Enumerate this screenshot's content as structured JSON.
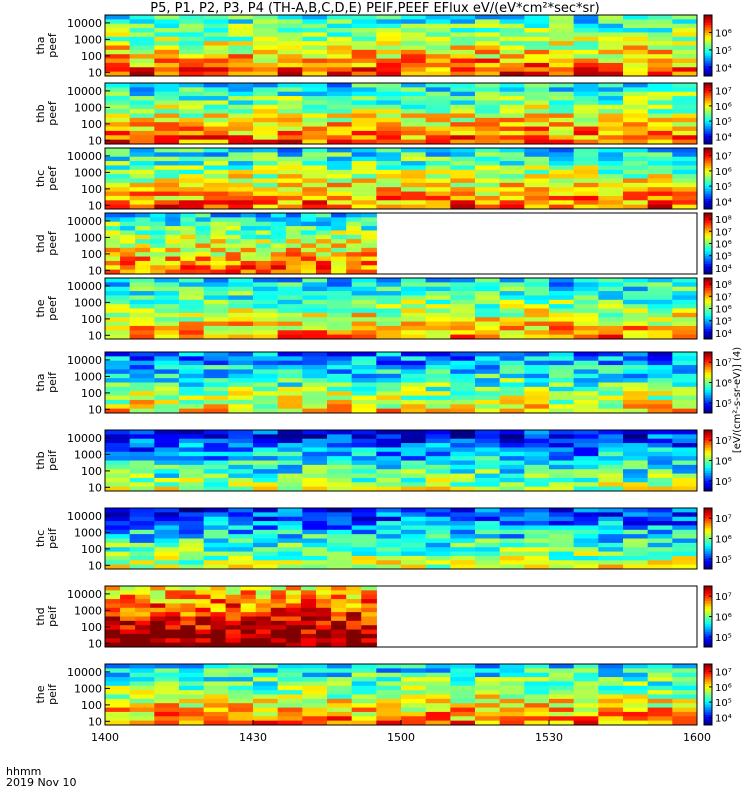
{
  "title": "P5, P1, P2, P3, P4 (TH-A,B,C,D,E) PEIF,PEEF EFlux eV/(eV*cm²*sec*sr)",
  "time_axis": {
    "label_line1": "hhmm",
    "label_line2": "2019 Nov 10",
    "ticks": [
      "1400",
      "1430",
      "1500",
      "1530",
      "1600"
    ]
  },
  "colorbar_unit": "[eV/(cm²-s-sr-eV)] (4)",
  "chart_data": {
    "type": "heatmap",
    "time_range": [
      1400,
      1600
    ],
    "energy_range_eV": [
      6,
      30000
    ],
    "yscale": "log",
    "y_ticks": [
      "10",
      "100",
      "1000",
      "10000"
    ],
    "panels": [
      {
        "label": "tha\npeef",
        "cbar_ticks": [
          "10⁴",
          "10⁵",
          "10⁶"
        ],
        "cbar_range": [
          3.5,
          7.0
        ],
        "data_end": 1600,
        "mean": 5.3
      },
      {
        "label": "thb\npeef",
        "cbar_ticks": [
          "10⁴",
          "10⁵",
          "10⁶",
          "10⁷"
        ],
        "cbar_range": [
          3.5,
          7.5
        ],
        "data_end": 1600,
        "mean": 5.5
      },
      {
        "label": "thc\npeef",
        "cbar_ticks": [
          "10⁴",
          "10⁵",
          "10⁶",
          "10⁷"
        ],
        "cbar_range": [
          3.5,
          7.5
        ],
        "data_end": 1600,
        "mean": 5.5
      },
      {
        "label": "thd\npeef",
        "cbar_ticks": [
          "10⁴",
          "10⁵",
          "10⁶",
          "10⁷",
          "10⁸"
        ],
        "cbar_range": [
          3.5,
          8.5
        ],
        "data_end": 1455,
        "mean": 6.0
      },
      {
        "label": "the\npeef",
        "cbar_ticks": [
          "10⁴",
          "10⁵",
          "10⁶",
          "10⁷",
          "10⁸"
        ],
        "cbar_range": [
          3.5,
          8.5
        ],
        "data_end": 1600,
        "mean": 5.8
      },
      {
        "label": "tha\npeif",
        "cbar_ticks": [
          "10⁵",
          "10⁶",
          "10⁷"
        ],
        "cbar_range": [
          4.5,
          7.5
        ],
        "data_end": 1600,
        "mean": 5.6
      },
      {
        "label": "thb\npeif",
        "cbar_ticks": [
          "10⁵",
          "10⁶",
          "10⁷"
        ],
        "cbar_range": [
          4.5,
          7.5
        ],
        "data_end": 1600,
        "mean": 5.3
      },
      {
        "label": "thc\npeif",
        "cbar_ticks": [
          "10⁵",
          "10⁶",
          "10⁷"
        ],
        "cbar_range": [
          4.5,
          7.5
        ],
        "data_end": 1600,
        "mean": 5.4
      },
      {
        "label": "thd\npeif",
        "cbar_ticks": [
          "10⁵",
          "10⁶",
          "10⁷"
        ],
        "cbar_range": [
          4.5,
          7.5
        ],
        "data_end": 1455,
        "mean": 6.8
      },
      {
        "label": "the\npeif",
        "cbar_ticks": [
          "10⁴",
          "10⁵",
          "10⁶",
          "10⁷"
        ],
        "cbar_range": [
          3.5,
          7.5
        ],
        "data_end": 1600,
        "mean": 5.4
      }
    ]
  }
}
